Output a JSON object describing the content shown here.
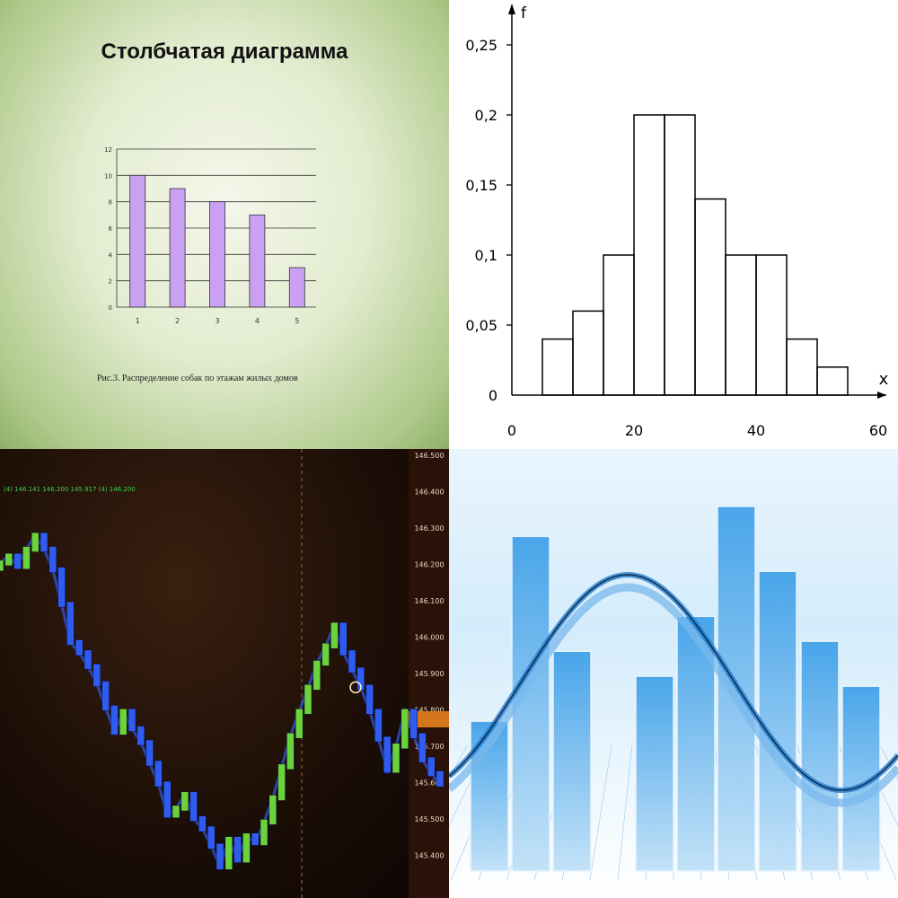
{
  "panels": {
    "top_left": {
      "title": "Столбчатая диаграмма",
      "caption": "Рис.3. Распределение собак по этажам жилых домов"
    },
    "top_right": {
      "y_axis_label": "f",
      "x_axis_label": "x"
    },
    "bottom_left": {
      "price_labels": [
        "146.500",
        "146.400",
        "146.300",
        "146.200",
        "146.100",
        "146.000",
        "145.900",
        "145.800",
        "145.700",
        "145.600",
        "145.500",
        "145.400"
      ],
      "header_text": "(4) 146.141 146.200 145.917 (4) 146.200"
    }
  },
  "chart_data": [
    {
      "type": "bar",
      "title": "Столбчатая диаграмма",
      "categories": [
        "1",
        "2",
        "3",
        "4",
        "5"
      ],
      "values": [
        10,
        9,
        8,
        7,
        3
      ],
      "ylim": [
        0,
        12
      ],
      "yticks": [
        "0",
        "2",
        "4",
        "6",
        "8",
        "10",
        "12"
      ],
      "color": "#c9a0f2",
      "grid": true
    },
    {
      "type": "bar",
      "subtype": "histogram",
      "xlabel": "x",
      "ylabel": "f",
      "bins": [
        [
          5,
          10
        ],
        [
          10,
          15
        ],
        [
          15,
          20
        ],
        [
          20,
          25
        ],
        [
          25,
          30
        ],
        [
          30,
          35
        ],
        [
          35,
          40
        ],
        [
          40,
          45
        ],
        [
          45,
          50
        ],
        [
          50,
          55
        ]
      ],
      "values": [
        0.04,
        0.06,
        0.1,
        0.2,
        0.2,
        0.14,
        0.1,
        0.1,
        0.04,
        0.02
      ],
      "xlim": [
        0,
        60
      ],
      "ylim": [
        0,
        0.25
      ],
      "xticks": [
        "0",
        "20",
        "40",
        "60"
      ],
      "yticks": [
        "0",
        "0,05",
        "0,1",
        "0,15",
        "0,2",
        "0,25"
      ],
      "grid": false
    },
    {
      "type": "line",
      "subtype": "price-chart",
      "series": [
        {
          "values": [
            146.22,
            146.24,
            146.21,
            146.26,
            146.3,
            146.26,
            146.2,
            146.1,
            145.99,
            145.96,
            145.92,
            145.87,
            145.8,
            145.73,
            145.79,
            145.74,
            145.7,
            145.64,
            145.58,
            145.49,
            145.51,
            145.55,
            145.48,
            145.45,
            145.4,
            145.34,
            145.42,
            145.36,
            145.43,
            145.41,
            145.47,
            145.54,
            145.63,
            145.72,
            145.79,
            145.86,
            145.93,
            145.98,
            146.04,
            145.96,
            145.91,
            145.86,
            145.79,
            145.71,
            145.62,
            145.69,
            145.79,
            145.72,
            145.65,
            145.61,
            145.58
          ]
        }
      ],
      "colors": {
        "up": "#6ad23a",
        "down": "#2f5cf0"
      }
    },
    {
      "type": "bar",
      "subtype": "decorative-bars-with-wave",
      "values": [
        3.0,
        6.7,
        4.4,
        3.9,
        5.1,
        7.3,
        6.0,
        4.6,
        3.7
      ],
      "ylim": [
        0,
        8
      ],
      "color": "#4aa6e6"
    }
  ]
}
